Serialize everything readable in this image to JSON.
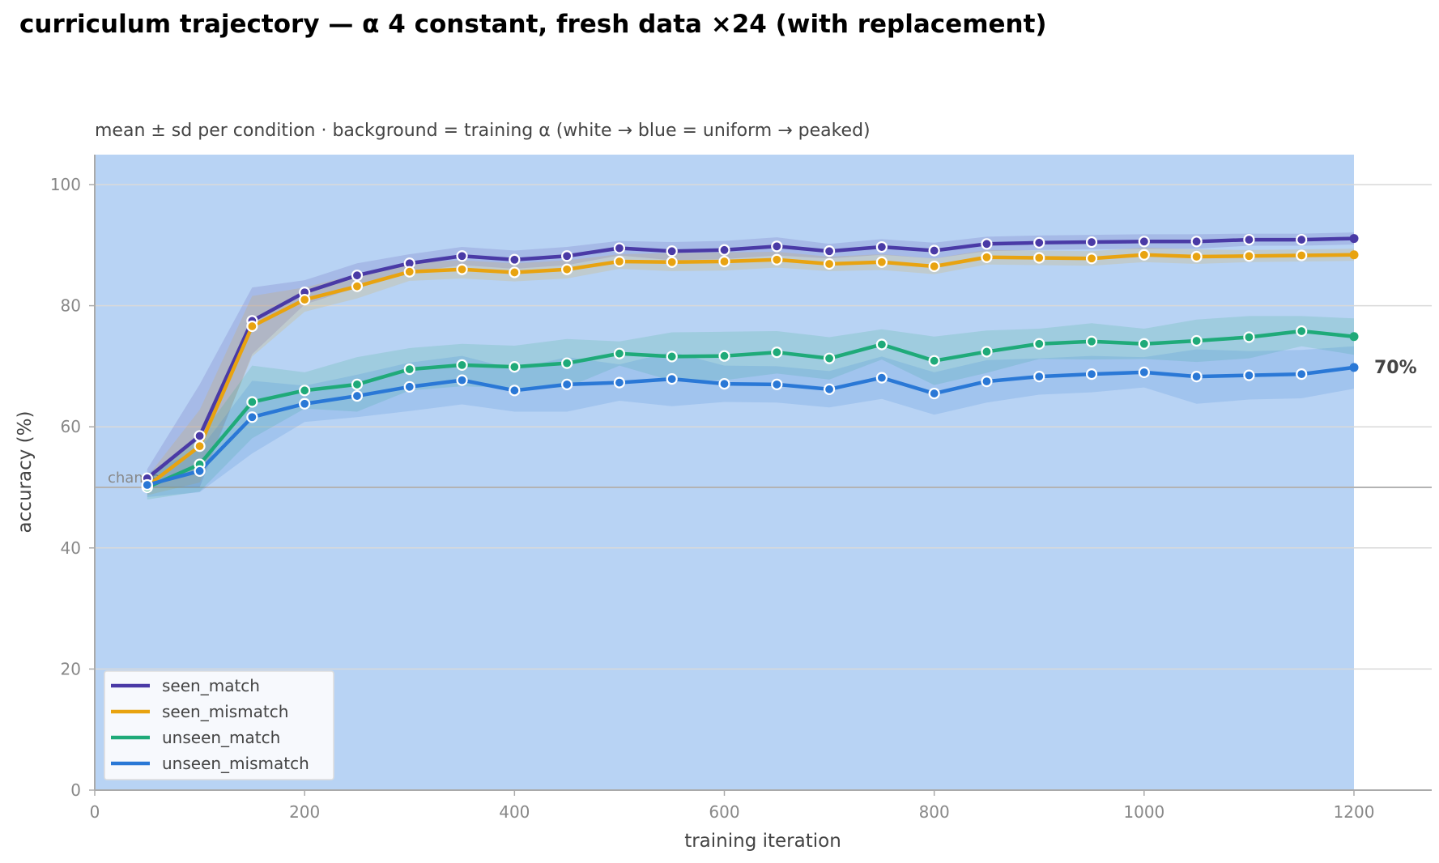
{
  "chart_data": {
    "type": "line",
    "title": "curriculum trajectory — α 4 constant, fresh data ×24 (with replacement)",
    "subtitle": "mean ± sd per condition · background = training α (white → blue = uniform → peaked)",
    "xlabel": "training iteration",
    "ylabel": "accuracy (%)",
    "xlim": [
      0,
      1275
    ],
    "ylim": [
      0,
      105
    ],
    "xticks": [
      0,
      200,
      400,
      600,
      800,
      1000,
      1200
    ],
    "yticks": [
      0,
      20,
      40,
      60,
      80,
      100
    ],
    "grid": "horizontal",
    "legend_position": "lower-left",
    "background_span": [
      0,
      1200
    ],
    "background_color": "#b8d3f4",
    "chance": {
      "y": 50,
      "label": "chance"
    },
    "end_annotation": "70%",
    "x": [
      50,
      100,
      150,
      200,
      250,
      300,
      350,
      400,
      450,
      500,
      550,
      600,
      650,
      700,
      750,
      800,
      850,
      900,
      950,
      1000,
      1050,
      1100,
      1150,
      1200
    ],
    "series": [
      {
        "name": "seen_match",
        "color": "#4a3aa6",
        "values": [
          51.5,
          58.5,
          77.5,
          82.2,
          85.0,
          87.0,
          88.2,
          87.6,
          88.2,
          89.5,
          89.0,
          89.2,
          89.8,
          89.0,
          89.7,
          89.1,
          90.2,
          90.4,
          90.5,
          90.6,
          90.6,
          90.9,
          90.9,
          91.1
        ],
        "sd": [
          1.5,
          8.5,
          5.5,
          2.0,
          2.0,
          1.5,
          1.5,
          1.5,
          1.5,
          1.2,
          1.5,
          1.5,
          1.5,
          1.2,
          1.3,
          1.3,
          1.2,
          1.2,
          1.2,
          1.2,
          1.2,
          1.0,
          1.0,
          1.0
        ]
      },
      {
        "name": "seen_mismatch",
        "color": "#e8a310",
        "values": [
          50.2,
          56.8,
          76.6,
          81.0,
          83.2,
          85.6,
          86.0,
          85.5,
          86.0,
          87.3,
          87.2,
          87.3,
          87.6,
          86.9,
          87.2,
          86.5,
          88.0,
          87.9,
          87.8,
          88.4,
          88.1,
          88.2,
          88.3,
          88.4
        ],
        "sd": [
          1.5,
          6.0,
          5.0,
          2.0,
          2.0,
          1.5,
          1.5,
          1.5,
          1.5,
          1.2,
          1.5,
          1.5,
          1.3,
          1.2,
          1.3,
          1.3,
          1.2,
          1.2,
          1.2,
          1.2,
          1.2,
          1.0,
          1.0,
          1.0
        ]
      },
      {
        "name": "unseen_match",
        "color": "#1faa79",
        "values": [
          50.0,
          53.8,
          64.1,
          66.0,
          67.0,
          69.5,
          70.2,
          69.9,
          70.5,
          72.1,
          71.6,
          71.7,
          72.3,
          71.3,
          73.6,
          70.9,
          72.4,
          73.7,
          74.1,
          73.7,
          74.2,
          74.8,
          75.8,
          74.9
        ],
        "sd": [
          2.0,
          4.5,
          6.0,
          3.0,
          4.5,
          3.5,
          3.5,
          3.5,
          4.0,
          2.0,
          4.0,
          4.0,
          3.5,
          3.5,
          2.5,
          4.0,
          3.5,
          2.5,
          3.0,
          2.5,
          3.5,
          3.5,
          2.5,
          3.0
        ]
      },
      {
        "name": "unseen_mismatch",
        "color": "#2a78d6",
        "values": [
          50.4,
          52.7,
          61.6,
          63.8,
          65.1,
          66.6,
          67.7,
          66.0,
          67.0,
          67.3,
          67.9,
          67.1,
          67.0,
          66.2,
          68.1,
          65.5,
          67.5,
          68.3,
          68.7,
          69.0,
          68.3,
          68.5,
          68.7,
          69.8
        ],
        "sd": [
          2.0,
          3.5,
          6.0,
          3.0,
          3.5,
          4.0,
          4.0,
          3.5,
          4.5,
          3.0,
          4.5,
          3.0,
          3.0,
          3.0,
          3.5,
          3.5,
          3.5,
          3.0,
          3.0,
          2.5,
          4.5,
          4.0,
          4.0,
          3.5
        ]
      }
    ]
  }
}
